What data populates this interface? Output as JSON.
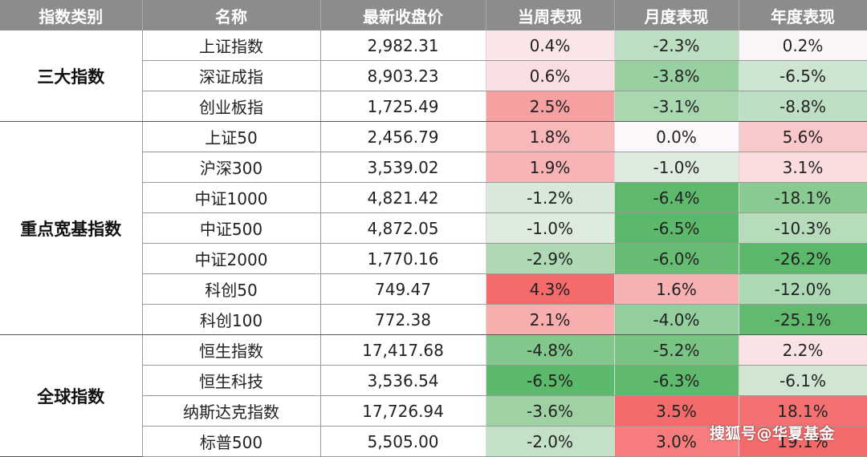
{
  "headers": [
    "指数类别",
    "名称",
    "最新收盘价",
    "当周表现",
    "月度表现",
    "年度表现"
  ],
  "groups": [
    {
      "category": "三大指数",
      "rows": [
        {
          "name": "上证指数",
          "price": "2,982.31",
          "week": "0.4%",
          "month": "-2.3%",
          "year": "0.2%"
        },
        {
          "name": "深证成指",
          "price": "8,903.23",
          "week": "0.6%",
          "month": "-3.8%",
          "year": "-6.5%"
        },
        {
          "name": "创业板指",
          "price": "1,725.49",
          "week": "2.5%",
          "month": "-3.1%",
          "year": "-8.8%"
        }
      ]
    },
    {
      "category": "重点宽基指数",
      "rows": [
        {
          "name": "上证50",
          "price": "2,456.79",
          "week": "1.8%",
          "month": "0.0%",
          "year": "5.6%"
        },
        {
          "name": "沪深300",
          "price": "3,539.02",
          "week": "1.9%",
          "month": "-1.0%",
          "year": "3.1%"
        },
        {
          "name": "中证1000",
          "price": "4,821.42",
          "week": "-1.2%",
          "month": "-6.4%",
          "year": "-18.1%"
        },
        {
          "name": "中证500",
          "price": "4,872.05",
          "week": "-1.0%",
          "month": "-6.5%",
          "year": "-10.3%"
        },
        {
          "name": "中证2000",
          "price": "1,770.16",
          "week": "-2.9%",
          "month": "-6.0%",
          "year": "-26.2%"
        },
        {
          "name": "科创50",
          "price": "749.47",
          "week": "4.3%",
          "month": "1.6%",
          "year": "-12.0%"
        },
        {
          "name": "科创100",
          "price": "772.38",
          "week": "2.1%",
          "month": "-4.0%",
          "year": "-25.1%"
        }
      ]
    },
    {
      "category": "全球指数",
      "rows": [
        {
          "name": "恒生指数",
          "price": "17,417.68",
          "week": "-4.8%",
          "month": "-5.2%",
          "year": "2.2%"
        },
        {
          "name": "恒生科技",
          "price": "3,536.54",
          "week": "-6.5%",
          "month": "-6.3%",
          "year": "-6.1%"
        },
        {
          "name": "纳斯达克指数",
          "price": "17,726.94",
          "week": "-3.6%",
          "month": "3.5%",
          "year": "18.1%"
        },
        {
          "name": "标普500",
          "price": "5,505.00",
          "week": "-2.0%",
          "month": "3.0%",
          "year": "19.1%"
        }
      ]
    }
  ],
  "watermark": "搜狐号@华夏基金",
  "colors": {
    "header_bg": "#8c8c8c",
    "positive_max": "#f56a6a",
    "negative_max": "#5cb86a",
    "neutral": "#fbf7fa"
  }
}
